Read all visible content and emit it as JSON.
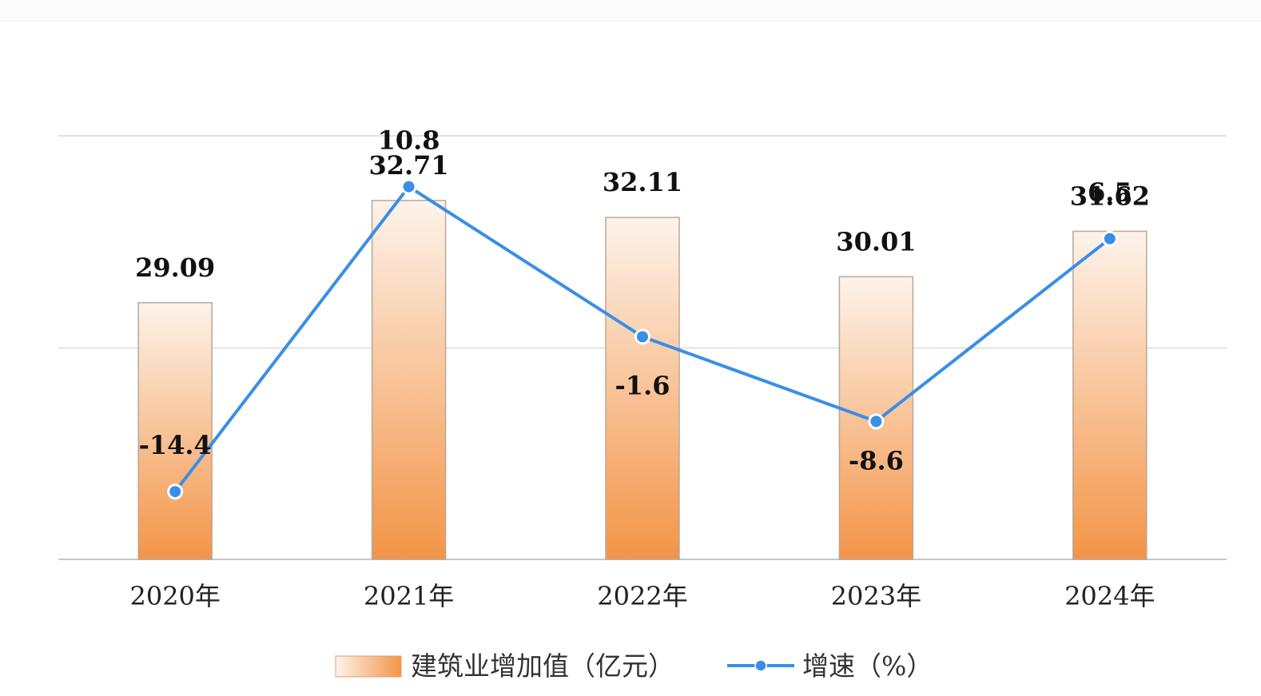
{
  "chart_data": {
    "type": "bar",
    "categories": [
      "2020年",
      "2021年",
      "2022年",
      "2023年",
      "2024年"
    ],
    "series": [
      {
        "name": "建筑业增加值（亿元）",
        "type": "bar",
        "values": [
          29.09,
          32.71,
          32.11,
          30.01,
          31.62
        ],
        "labels": [
          "29.09",
          "32.71",
          "32.11",
          "30.01",
          "31.62"
        ],
        "color": "#f5a463"
      },
      {
        "name": "增速（%）",
        "type": "line",
        "values": [
          -14.4,
          10.8,
          -1.6,
          -8.6,
          6.5
        ],
        "labels": [
          "-14.4",
          "10.8",
          "-1.6",
          "-8.6",
          "6.5"
        ],
        "color": "#3a8ee6"
      }
    ],
    "title": "",
    "xlabel": "",
    "ylabel": "",
    "ylim": [
      20,
      35
    ],
    "y2lim": [
      -20,
      15
    ],
    "grid": true,
    "legend": "bottom-center"
  }
}
